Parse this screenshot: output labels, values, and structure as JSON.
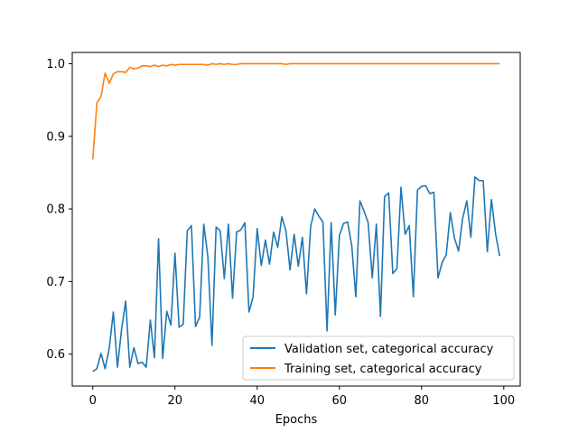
{
  "chart_data": {
    "type": "line",
    "title": "",
    "xlabel": "Epochs",
    "ylabel": "",
    "xlim": [
      -5,
      104
    ],
    "ylim": [
      0.556,
      1.0155
    ],
    "xticks": [
      0,
      20,
      40,
      60,
      80,
      100
    ],
    "yticks": [
      0.6,
      0.7,
      0.8,
      0.9,
      1.0
    ],
    "xtick_labels": [
      "0",
      "20",
      "40",
      "60",
      "80",
      "100"
    ],
    "ytick_labels": [
      "0.6",
      "0.7",
      "0.8",
      "0.9",
      "1.0"
    ],
    "grid": false,
    "legend_position": "lower-right",
    "x": [
      0,
      1,
      2,
      3,
      4,
      5,
      6,
      7,
      8,
      9,
      10,
      11,
      12,
      13,
      14,
      15,
      16,
      17,
      18,
      19,
      20,
      21,
      22,
      23,
      24,
      25,
      26,
      27,
      28,
      29,
      30,
      31,
      32,
      33,
      34,
      35,
      36,
      37,
      38,
      39,
      40,
      41,
      42,
      43,
      44,
      45,
      46,
      47,
      48,
      49,
      50,
      51,
      52,
      53,
      54,
      55,
      56,
      57,
      58,
      59,
      60,
      61,
      62,
      63,
      64,
      65,
      66,
      67,
      68,
      69,
      70,
      71,
      72,
      73,
      74,
      75,
      76,
      77,
      78,
      79,
      80,
      81,
      82,
      83,
      84,
      85,
      86,
      87,
      88,
      89,
      90,
      91,
      92,
      93,
      94,
      95,
      96,
      97,
      98,
      99
    ],
    "series": [
      {
        "name": "Validation set, categorical accuracy",
        "color": "#1f77b4",
        "values": [
          0.576,
          0.58,
          0.601,
          0.58,
          0.608,
          0.658,
          0.582,
          0.634,
          0.673,
          0.582,
          0.609,
          0.587,
          0.589,
          0.582,
          0.647,
          0.595,
          0.759,
          0.594,
          0.659,
          0.64,
          0.739,
          0.637,
          0.641,
          0.77,
          0.777,
          0.638,
          0.651,
          0.779,
          0.734,
          0.612,
          0.775,
          0.77,
          0.704,
          0.779,
          0.677,
          0.768,
          0.771,
          0.781,
          0.658,
          0.679,
          0.773,
          0.722,
          0.757,
          0.724,
          0.768,
          0.747,
          0.789,
          0.77,
          0.716,
          0.765,
          0.721,
          0.761,
          0.683,
          0.775,
          0.8,
          0.79,
          0.782,
          0.632,
          0.781,
          0.654,
          0.763,
          0.78,
          0.782,
          0.75,
          0.679,
          0.811,
          0.797,
          0.781,
          0.705,
          0.779,
          0.652,
          0.817,
          0.822,
          0.711,
          0.718,
          0.83,
          0.765,
          0.777,
          0.679,
          0.826,
          0.831,
          0.832,
          0.821,
          0.823,
          0.705,
          0.726,
          0.737,
          0.795,
          0.76,
          0.742,
          0.787,
          0.811,
          0.761,
          0.844,
          0.839,
          0.839,
          0.741,
          0.813,
          0.766,
          0.735
        ]
      },
      {
        "name": "Training set, categorical accuracy",
        "color": "#ff7f0e",
        "values": [
          0.868,
          0.946,
          0.955,
          0.987,
          0.973,
          0.986,
          0.989,
          0.989,
          0.988,
          0.995,
          0.993,
          0.994,
          0.997,
          0.997,
          0.996,
          0.998,
          0.996,
          0.998,
          0.997,
          0.999,
          0.998,
          0.999,
          0.999,
          0.999,
          0.999,
          0.999,
          0.999,
          0.999,
          0.998,
          1.0,
          0.999,
          1.0,
          0.999,
          1.0,
          0.999,
          0.999,
          1.0,
          1.0,
          1.0,
          1.0,
          1.0,
          1.0,
          1.0,
          1.0,
          1.0,
          1.0,
          1.0,
          0.999,
          1.0,
          1.0,
          1.0,
          1.0,
          1.0,
          1.0,
          1.0,
          1.0,
          1.0,
          1.0,
          1.0,
          1.0,
          1.0,
          1.0,
          1.0,
          1.0,
          1.0,
          1.0,
          1.0,
          1.0,
          1.0,
          1.0,
          1.0,
          1.0,
          1.0,
          1.0,
          1.0,
          1.0,
          1.0,
          1.0,
          1.0,
          1.0,
          1.0,
          1.0,
          1.0,
          1.0,
          1.0,
          1.0,
          1.0,
          1.0,
          1.0,
          1.0,
          1.0,
          1.0,
          1.0,
          1.0,
          1.0,
          1.0,
          1.0,
          1.0,
          1.0,
          1.0
        ]
      }
    ]
  }
}
